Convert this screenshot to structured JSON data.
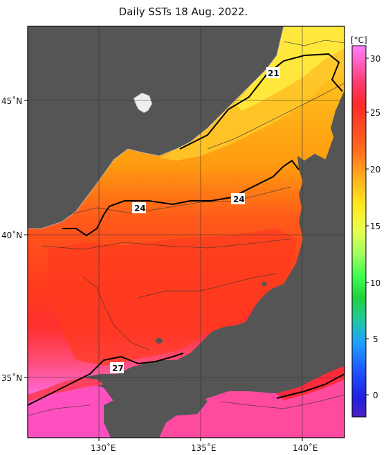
{
  "title": "Daily SSTs 18 Aug. 2022.",
  "colorbar": {
    "unit": "[°C]",
    "ticks": [
      "30",
      "25",
      "20",
      "15",
      "10",
      "5",
      "0"
    ],
    "colors": [
      "#ff70ff",
      "#ff3a5a",
      "#ff3a1e",
      "#ff7a1e",
      "#ffb41e",
      "#ffe01e",
      "#ffff40",
      "#c8ff60",
      "#40ff60",
      "#20d040",
      "#20c8a0",
      "#20a0ff",
      "#1e50ff",
      "#2020e0",
      "#4020c0"
    ],
    "land_color": "#555555",
    "frame_color": "#000000"
  },
  "axes": {
    "lon_ticks": [
      "130˚E",
      "135˚E",
      "140˚E"
    ],
    "lat_ticks": [
      "45˚N",
      "40˚N",
      "35˚N"
    ]
  },
  "isotherms": [
    "21",
    "24",
    "24",
    "27"
  ]
}
